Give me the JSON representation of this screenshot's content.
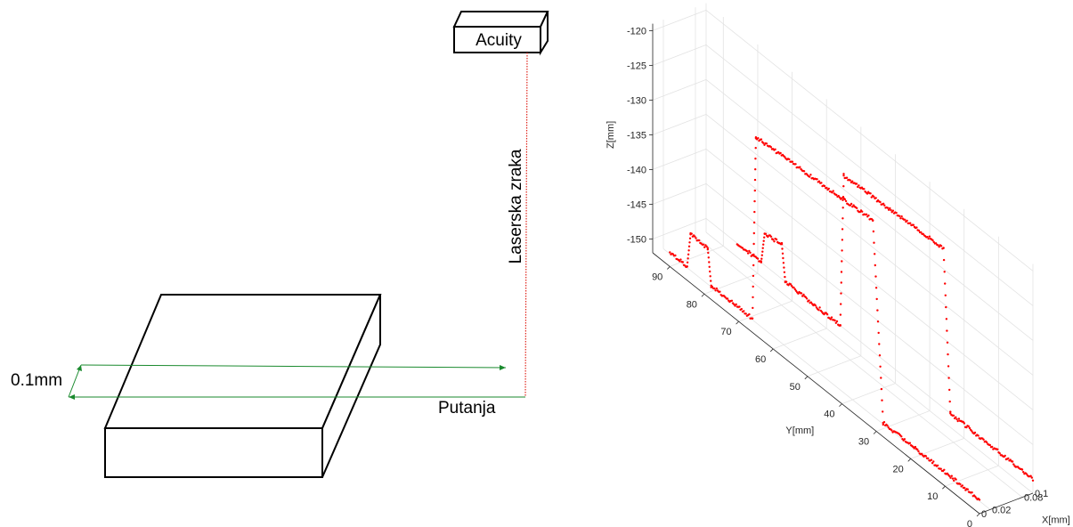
{
  "diagram": {
    "sensor_label": "Acuity",
    "beam_label": "Laserska zraka",
    "path_label": "Putanja",
    "step_label": "0.1mm",
    "colors": {
      "beam": "#e0261d",
      "path": "#1a8a2e",
      "outline": "#000000"
    }
  },
  "chart_data": {
    "type": "scatter",
    "projection": "3d",
    "xlabel": "X[mm]",
    "ylabel": "Y[mm]",
    "zlabel": "Z[mm]",
    "x_ticks": [
      "0",
      "0.02",
      "0.08",
      "0.1"
    ],
    "y_ticks": [
      "0",
      "10",
      "20",
      "30",
      "40",
      "50",
      "60",
      "70",
      "80",
      "90"
    ],
    "z_ticks": [
      "-120",
      "-125",
      "-130",
      "-135",
      "-140",
      "-145",
      "-150"
    ],
    "xlim": [
      0,
      0.1
    ],
    "ylim": [
      0,
      95
    ],
    "zlim": [
      -152,
      -119
    ],
    "grid": true,
    "color": "#ff0000",
    "series": [
      {
        "x": 0.0,
        "segments": [
          {
            "y": [
              0,
              28
            ],
            "z": [
              -150,
              -150
            ]
          },
          {
            "y": [
              28,
              31
            ],
            "z": [
              -150,
              -122
            ]
          },
          {
            "y": [
              31,
              65
            ],
            "z": [
              -122,
              -123.5
            ]
          },
          {
            "y": [
              65,
              66
            ],
            "z": [
              -123.5,
              -150
            ]
          },
          {
            "y": [
              66,
              78
            ],
            "z": [
              -150,
              -150
            ]
          },
          {
            "y": [
              78,
              79
            ],
            "z": [
              -150,
              -145
            ]
          },
          {
            "y": [
              79,
              84
            ],
            "z": [
              -145,
              -145
            ]
          },
          {
            "y": [
              84,
              85
            ],
            "z": [
              -145,
              -150
            ]
          },
          {
            "y": [
              85,
              90
            ],
            "z": [
              -150,
              -150
            ]
          }
        ]
      },
      {
        "x": 0.1,
        "segments": [
          {
            "y": [
              0,
              24
            ],
            "z": [
              -150,
              -150
            ]
          },
          {
            "y": [
              24,
              26
            ],
            "z": [
              -150,
              -127
            ]
          },
          {
            "y": [
              26,
              55
            ],
            "z": [
              -127,
              -128
            ]
          },
          {
            "y": [
              55,
              56
            ],
            "z": [
              -128,
              -150
            ]
          },
          {
            "y": [
              56,
              72
            ],
            "z": [
              -150,
              -150
            ]
          },
          {
            "y": [
              72,
              73
            ],
            "z": [
              -150,
              -145
            ]
          },
          {
            "y": [
              73,
              78
            ],
            "z": [
              -145,
              -145.5
            ]
          },
          {
            "y": [
              78,
              79
            ],
            "z": [
              -145.5,
              -150
            ]
          },
          {
            "y": [
              79,
              86
            ],
            "z": [
              -150,
              -150
            ]
          }
        ]
      }
    ]
  }
}
